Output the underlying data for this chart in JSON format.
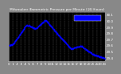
{
  "title": "Milwaukee Barometric Pressure per Minute (24 Hours)",
  "bg_color": "#888888",
  "plot_bg_color": "#000000",
  "dot_color": "#0000ff",
  "legend_box_color": "#0000ff",
  "legend_box_edge": "#ffffff",
  "dot_size": 1.2,
  "x_min": 0,
  "x_max": 1440,
  "y_min": 29.35,
  "y_max": 30.15,
  "yticks": [
    29.4,
    29.5,
    29.6,
    29.7,
    29.8,
    29.9,
    30.0,
    30.1
  ],
  "ytick_labels": [
    "29.4",
    "29.5",
    "29.6",
    "29.7",
    "29.8",
    "29.9",
    "30.0",
    "30.1"
  ],
  "xticks": [
    0,
    60,
    120,
    180,
    240,
    300,
    360,
    420,
    480,
    540,
    600,
    660,
    720,
    780,
    840,
    900,
    960,
    1020,
    1080,
    1140,
    1200,
    1260,
    1320,
    1380,
    1440
  ],
  "xtick_labels": [
    "0",
    "1",
    "2",
    "3",
    "4",
    "5",
    "6",
    "7",
    "8",
    "9",
    "10",
    "11",
    "12",
    "13",
    "14",
    "15",
    "16",
    "17",
    "18",
    "19",
    "20",
    "21",
    "22",
    "23",
    "24"
  ],
  "grid_color": "#888888",
  "grid_style": "--",
  "border_color": "#888888",
  "tick_color": "#ffffff",
  "title_color": "#ffffff",
  "outer_bg": "#888888"
}
